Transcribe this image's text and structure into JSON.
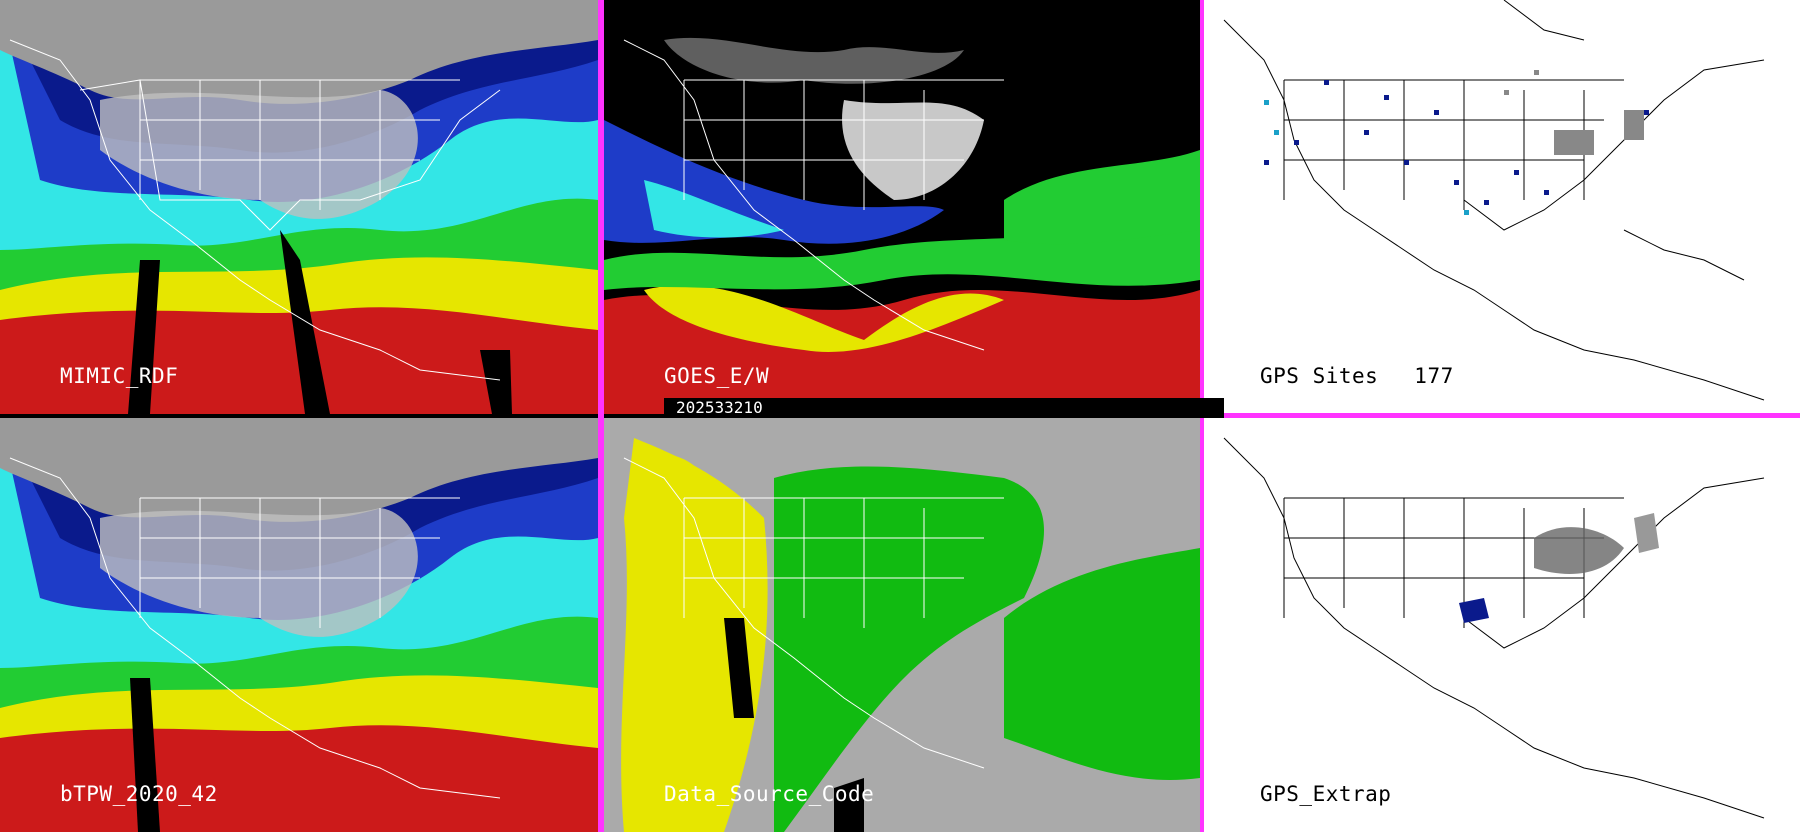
{
  "panels": [
    {
      "id": "mimic",
      "label": "MIMIC_RDF"
    },
    {
      "id": "goes",
      "label": "GOES_E/W"
    },
    {
      "id": "gps_sites",
      "label": "GPS Sites",
      "count": "177"
    },
    {
      "id": "btpw",
      "label": "bTPW_2020_42"
    },
    {
      "id": "dsc",
      "label": "Data_Source_Code"
    },
    {
      "id": "gps_extrap",
      "label": "GPS_Extrap"
    }
  ],
  "timestamp": "202533210",
  "colors": {
    "divider": "#ff33ff",
    "tpw_scale": [
      "#8a8a8a",
      "#0a1a8c",
      "#1e3cc8",
      "#1aa0c8",
      "#33e6e6",
      "#22cc33",
      "#99e633",
      "#e6e600",
      "#c8a000",
      "#cc1a1a"
    ],
    "dsc_gray": "#aaaaaa",
    "dsc_yellow": "#e6e600",
    "dsc_green": "#11bb11"
  },
  "icons": [
    "state-boundaries",
    "coastlines",
    "gps-site-markers"
  ]
}
